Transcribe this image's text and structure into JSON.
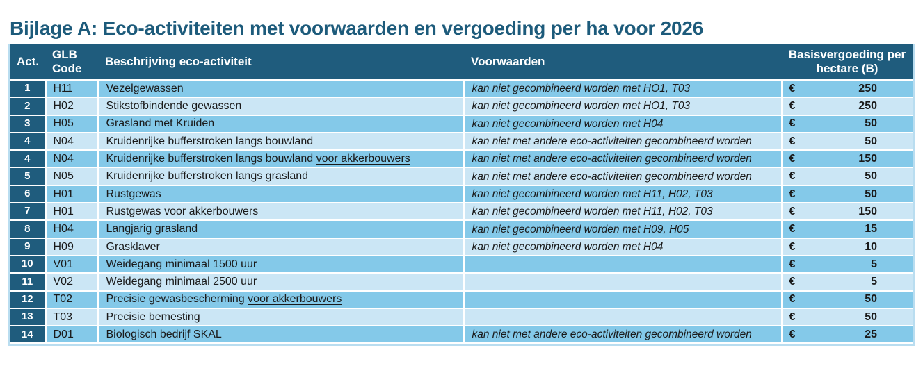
{
  "page": {
    "title": "Bijlage A: Eco-activiteiten met voorwaarden en vergoeding per ha voor 2026"
  },
  "colors": {
    "title": "#1D5B7B",
    "header_bg": "#1F5C7D",
    "row_dark": "#84C9E9",
    "row_light": "#CBE6F5",
    "cell_border": "#FFFFFF",
    "outer_border": "#B9DDF0",
    "text": "#1A1A1A"
  },
  "table": {
    "headers": {
      "act": "Act.",
      "glb_code": "GLB Code",
      "description": "Beschrijving eco-activiteit",
      "conditions": "Voorwaarden",
      "fee": "Basisvergoeding per hectare (B)"
    },
    "currency_symbol": "€",
    "rows": [
      {
        "act": "1",
        "code": "H11",
        "description": "Vezelgewassen",
        "description_underlined": "",
        "conditions": "kan niet gecombineerd worden met HO1, T03",
        "amount": "250"
      },
      {
        "act": "2",
        "code": "H02",
        "description": "Stikstofbindende gewassen",
        "description_underlined": "",
        "conditions": "kan niet gecombineerd worden met HO1, T03",
        "amount": "250"
      },
      {
        "act": "3",
        "code": "H05",
        "description": "Grasland met Kruiden",
        "description_underlined": "",
        "conditions": "kan niet gecombineerd worden met H04",
        "amount": "50"
      },
      {
        "act": "4",
        "code": "N04",
        "description": "Kruidenrijke bufferstroken langs bouwland",
        "description_underlined": "",
        "conditions": "kan niet met andere eco-activiteiten gecombineerd worden",
        "amount": "50"
      },
      {
        "act": "4",
        "code": "N04",
        "description": "Kruidenrijke bufferstroken langs bouwland ",
        "description_underlined": "voor akkerbouwers",
        "conditions": "kan niet met andere eco-activiteiten gecombineerd worden",
        "amount": "150"
      },
      {
        "act": "5",
        "code": "N05",
        "description": "Kruidenrijke bufferstroken langs grasland",
        "description_underlined": "",
        "conditions": "kan niet met andere eco-activiteiten gecombineerd worden",
        "amount": "50"
      },
      {
        "act": "6",
        "code": "H01",
        "description": "Rustgewas",
        "description_underlined": "",
        "conditions": "kan niet gecombineerd worden met H11, H02, T03",
        "amount": "50"
      },
      {
        "act": "7",
        "code": "H01",
        "description": "Rustgewas ",
        "description_underlined": "voor akkerbouwers",
        "conditions": "kan niet gecombineerd worden met H11, H02, T03",
        "amount": "150"
      },
      {
        "act": "8",
        "code": "H04",
        "description": "Langjarig grasland",
        "description_underlined": "",
        "conditions": "kan niet gecombineerd worden met H09, H05",
        "amount": "15"
      },
      {
        "act": "9",
        "code": "H09",
        "description": "Grasklaver",
        "description_underlined": "",
        "conditions": "kan niet gecombineerd worden met H04",
        "amount": "10"
      },
      {
        "act": "10",
        "code": "V01",
        "description": "Weidegang minimaal 1500 uur",
        "description_underlined": "",
        "conditions": "",
        "amount": "5"
      },
      {
        "act": "11",
        "code": "V02",
        "description": "Weidegang minimaal 2500 uur",
        "description_underlined": "",
        "conditions": "",
        "amount": "5"
      },
      {
        "act": "12",
        "code": "T02",
        "description": "Precisie gewasbescherming  ",
        "description_underlined": "voor akkerbouwers",
        "conditions": "",
        "amount": "50"
      },
      {
        "act": "13",
        "code": "T03",
        "description": "Precisie bemesting",
        "description_underlined": "",
        "conditions": "",
        "amount": "50"
      },
      {
        "act": "14",
        "code": "D01",
        "description": "Biologisch bedrijf SKAL",
        "description_underlined": "",
        "conditions": "kan niet met andere eco-activiteiten gecombineerd worden",
        "amount": "25"
      }
    ]
  }
}
